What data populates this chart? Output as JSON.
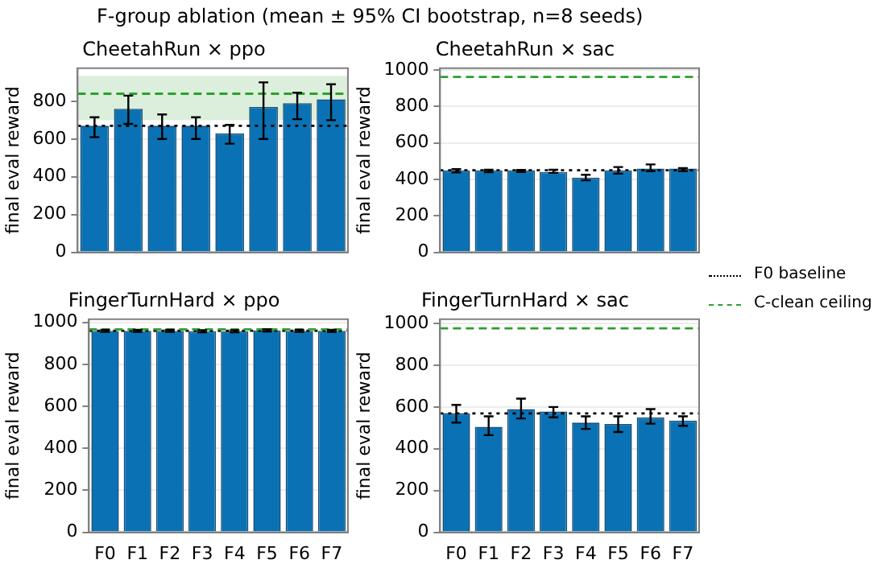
{
  "chart_data": [
    {
      "type": "bar",
      "title": "CheetahRun × ppo",
      "annotations": [
        "F-group ablation (mean ± 95% CI bootstrap, n=8 seeds)"
      ],
      "ylabel": "final eval reward",
      "categories": [
        null,
        null,
        null,
        null,
        null,
        null,
        null,
        null
      ],
      "color": "#0a72b4",
      "values": [
        670,
        760,
        670,
        670,
        630,
        770,
        790,
        810
      ],
      "errors": [
        [
          610,
          715
        ],
        [
          680,
          830
        ],
        [
          600,
          730
        ],
        [
          600,
          715
        ],
        [
          575,
          675
        ],
        [
          600,
          900
        ],
        [
          705,
          845
        ],
        [
          700,
          890
        ]
      ],
      "ylim": [
        0,
        975
      ],
      "yticks": [
        0,
        200,
        400,
        600,
        800
      ],
      "grid": "y",
      "tick_labels": "y",
      "legend": "right",
      "bands": [
        {
          "axis": "y",
          "from": 700,
          "to": 935,
          "color": "#dcefdc"
        }
      ],
      "ref_lines": [
        {
          "axis": "y",
          "value": 670,
          "label": "F0 baseline",
          "color": "#000000",
          "line_style": "dotted"
        },
        {
          "axis": "y",
          "value": 840,
          "label": "C-clean ceiling",
          "color": "#2ca02c",
          "line_style": "dashed"
        }
      ]
    },
    {
      "type": "bar",
      "title": "CheetahRun × sac",
      "ylabel": "final eval reward",
      "categories": [
        null,
        null,
        null,
        null,
        null,
        null,
        null,
        null
      ],
      "color": "#0a72b4",
      "values": [
        450,
        450,
        450,
        440,
        410,
        450,
        460,
        460
      ],
      "errors": [
        [
          438,
          456
        ],
        [
          440,
          453
        ],
        [
          441,
          452
        ],
        [
          436,
          453
        ],
        [
          395,
          425
        ],
        [
          432,
          468
        ],
        [
          445,
          482
        ],
        [
          445,
          462
        ]
      ],
      "ylim": [
        0,
        1010
      ],
      "yticks": [
        0,
        200,
        400,
        600,
        800,
        1000
      ],
      "grid": "y",
      "tick_labels": "y",
      "ref_lines": [
        {
          "axis": "y",
          "value": 450,
          "color": "#000000",
          "line_style": "dotted"
        },
        {
          "axis": "y",
          "value": 962,
          "color": "#2ca02c",
          "line_style": "dashed"
        }
      ]
    },
    {
      "type": "bar",
      "title": "FingerTurnHard × ppo",
      "ylabel": "final eval reward",
      "categories": [
        "F0",
        "F1",
        "F2",
        "F3",
        "F4",
        "F5",
        "F6",
        "F7"
      ],
      "color": "#0a72b4",
      "values": [
        960,
        960,
        960,
        958,
        958,
        962,
        960,
        960
      ],
      "errors": [
        5,
        5,
        5,
        5,
        5,
        5,
        5,
        5
      ],
      "ylim": [
        0,
        1015
      ],
      "yticks": [
        0,
        200,
        400,
        600,
        800,
        1000
      ],
      "grid": "y",
      "ref_lines": [
        {
          "axis": "y",
          "value": 960,
          "color": "#000000",
          "line_style": "dotted"
        },
        {
          "axis": "y",
          "value": 967,
          "color": "#2ca02c",
          "line_style": "dashed"
        }
      ]
    },
    {
      "type": "bar",
      "title": "FingerTurnHard × sac",
      "ylabel": "final eval reward",
      "categories": [
        "F0",
        "F1",
        "F2",
        "F3",
        "F4",
        "F5",
        "F6",
        "F7"
      ],
      "color": "#0a72b4",
      "values": [
        570,
        505,
        590,
        578,
        525,
        518,
        550,
        535
      ],
      "errors": [
        [
          525,
          610
        ],
        [
          465,
          555
        ],
        [
          545,
          640
        ],
        [
          550,
          600
        ],
        [
          495,
          555
        ],
        [
          480,
          555
        ],
        [
          520,
          590
        ],
        [
          510,
          555
        ]
      ],
      "ylim": [
        0,
        1020
      ],
      "yticks": [
        0,
        200,
        400,
        600,
        800,
        1000
      ],
      "grid": "y",
      "ref_lines": [
        {
          "axis": "y",
          "value": 569,
          "color": "#000000",
          "line_style": "dotted"
        },
        {
          "axis": "y",
          "value": 976,
          "color": "#2ca02c",
          "line_style": "dashed"
        }
      ]
    }
  ]
}
